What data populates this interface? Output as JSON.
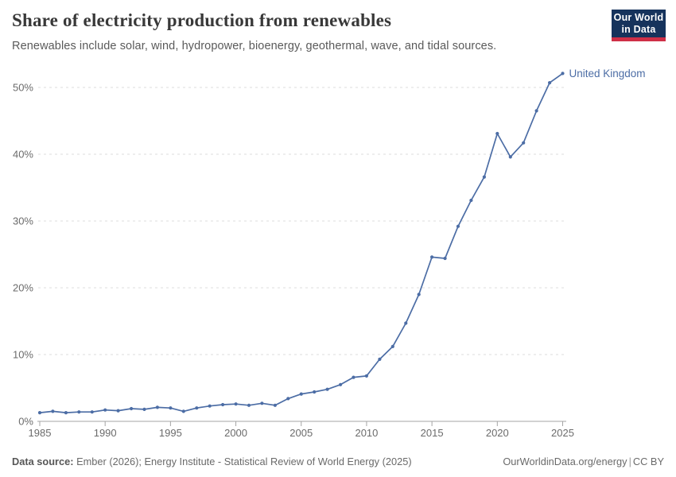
{
  "header": {
    "title": "Share of electricity production from renewables",
    "subtitle": "Renewables include solar, wind, hydropower, bioenergy, geothermal, wave, and tidal sources.",
    "logo": {
      "line1": "Our World",
      "line2": "in Data"
    }
  },
  "chart_data": {
    "type": "line",
    "title": "Share of electricity production from renewables",
    "xlabel": "",
    "ylabel": "",
    "xlim": [
      1985,
      2025
    ],
    "ylim": [
      0,
      52.5
    ],
    "grid": "horizontal-dashed",
    "legend_position": "end-of-line-label",
    "x_ticks": [
      1985,
      1990,
      1995,
      2000,
      2005,
      2010,
      2015,
      2020,
      2025
    ],
    "y_ticks": [
      0,
      10,
      20,
      30,
      40,
      50
    ],
    "y_tick_suffix": "%",
    "series": [
      {
        "name": "United Kingdom",
        "color": "#4c6da5",
        "x": [
          1985,
          1986,
          1987,
          1988,
          1989,
          1990,
          1991,
          1992,
          1993,
          1994,
          1995,
          1996,
          1997,
          1998,
          1999,
          2000,
          2001,
          2002,
          2003,
          2004,
          2005,
          2006,
          2007,
          2008,
          2009,
          2010,
          2011,
          2012,
          2013,
          2014,
          2015,
          2016,
          2017,
          2018,
          2019,
          2020,
          2021,
          2022,
          2023,
          2024,
          2025
        ],
        "values": [
          1.3,
          1.5,
          1.3,
          1.4,
          1.4,
          1.7,
          1.6,
          1.9,
          1.8,
          2.1,
          2.0,
          1.5,
          2.0,
          2.3,
          2.5,
          2.6,
          2.4,
          2.7,
          2.4,
          3.4,
          4.1,
          4.4,
          4.8,
          5.5,
          6.6,
          6.8,
          9.3,
          11.2,
          14.7,
          19.0,
          24.6,
          24.4,
          29.2,
          33.1,
          36.6,
          43.1,
          39.6,
          41.7,
          46.5,
          50.7,
          52.1
        ]
      }
    ]
  },
  "footer": {
    "source_label": "Data source:",
    "source_text": "Ember (2026); Energy Institute - Statistical Review of World Energy (2025)",
    "link": "OurWorldinData.org/energy",
    "separator": "|",
    "license": "CC BY"
  }
}
